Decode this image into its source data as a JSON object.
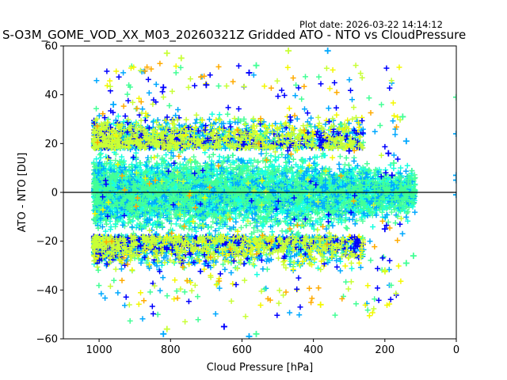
{
  "plot_date": "Plot date: 2026-03-22 14:14:12",
  "chart_data": {
    "type": "scatter",
    "title": "S-O3M_GOME_VOD_XX_M03_20260321Z Gridded ATO - NTO vs CloudPressure",
    "xlabel": "Cloud Pressure [hPa]",
    "ylabel": "ATO - NTO [DU]",
    "xlim": [
      1100,
      0
    ],
    "ylim": [
      -60,
      60
    ],
    "x_reversed": true,
    "xticks": [
      1000,
      800,
      600,
      400,
      200,
      0
    ],
    "yticks": [
      60,
      40,
      20,
      0,
      -20,
      -40,
      -60
    ],
    "xtick_labels": [
      "1000",
      "800",
      "600",
      "400",
      "200",
      "0"
    ],
    "ytick_labels": [
      "60",
      "40",
      "20",
      "0",
      "−20",
      "−40",
      "−60"
    ],
    "grid": false,
    "marker": "+",
    "reference_line_y": 0,
    "colormap": "jet",
    "point_colors": [
      "#0000ff",
      "#00a8ff",
      "#17ffe0",
      "#43ff96",
      "#57ff9f",
      "#c8ff37",
      "#f4f800",
      "#ffab00"
    ],
    "cloud": {
      "x_range": [
        1015,
        115
      ],
      "y_core_range": [
        -25,
        30
      ],
      "y_extreme_range": [
        -58,
        58
      ]
    },
    "sample_points": [
      {
        "x": 960,
        "y": 36,
        "color": "#00a8ff"
      },
      {
        "x": 820,
        "y": 43,
        "color": "#0000ff"
      },
      {
        "x": 810,
        "y": 57,
        "color": "#c8ff37"
      },
      {
        "x": 770,
        "y": 55,
        "color": "#c8ff37"
      },
      {
        "x": 700,
        "y": 44,
        "color": "#0000ff"
      },
      {
        "x": 580,
        "y": 49,
        "color": "#0000ff"
      },
      {
        "x": 560,
        "y": 52,
        "color": "#43ff96"
      },
      {
        "x": 470,
        "y": 58,
        "color": "#c8ff37"
      },
      {
        "x": 360,
        "y": 58,
        "color": "#00a8ff"
      },
      {
        "x": 300,
        "y": 17,
        "color": "#0000ff"
      },
      {
        "x": 190,
        "y": 16,
        "color": "#0000ff"
      },
      {
        "x": 180,
        "y": 7,
        "color": "#0000ff"
      },
      {
        "x": 175,
        "y": 12,
        "color": "#43ff96"
      },
      {
        "x": 150,
        "y": 31,
        "color": "#43ff96"
      },
      {
        "x": 140,
        "y": 21,
        "color": "#00a8ff"
      },
      {
        "x": 120,
        "y": -26,
        "color": "#43ff96"
      },
      {
        "x": 140,
        "y": -29,
        "color": "#43ff96"
      },
      {
        "x": 200,
        "y": -15,
        "color": "#0000ff"
      },
      {
        "x": 200,
        "y": -32,
        "color": "#c8ff37"
      },
      {
        "x": 380,
        "y": -46,
        "color": "#f4f800"
      },
      {
        "x": 580,
        "y": -59,
        "color": "#00a8ff"
      },
      {
        "x": 560,
        "y": -58,
        "color": "#43ff96"
      },
      {
        "x": 820,
        "y": -58,
        "color": "#00a8ff"
      },
      {
        "x": 810,
        "y": -56,
        "color": "#c8ff37"
      },
      {
        "x": 650,
        "y": -55,
        "color": "#0000ff"
      },
      {
        "x": 0,
        "y": 39,
        "color": "#43ff96"
      },
      {
        "x": 0,
        "y": 24,
        "color": "#00a8ff"
      },
      {
        "x": 0,
        "y": 7,
        "color": "#00a8ff"
      },
      {
        "x": 0,
        "y": 5,
        "color": "#00a8ff"
      },
      {
        "x": 0,
        "y": -1,
        "color": "#00a8ff"
      }
    ]
  }
}
